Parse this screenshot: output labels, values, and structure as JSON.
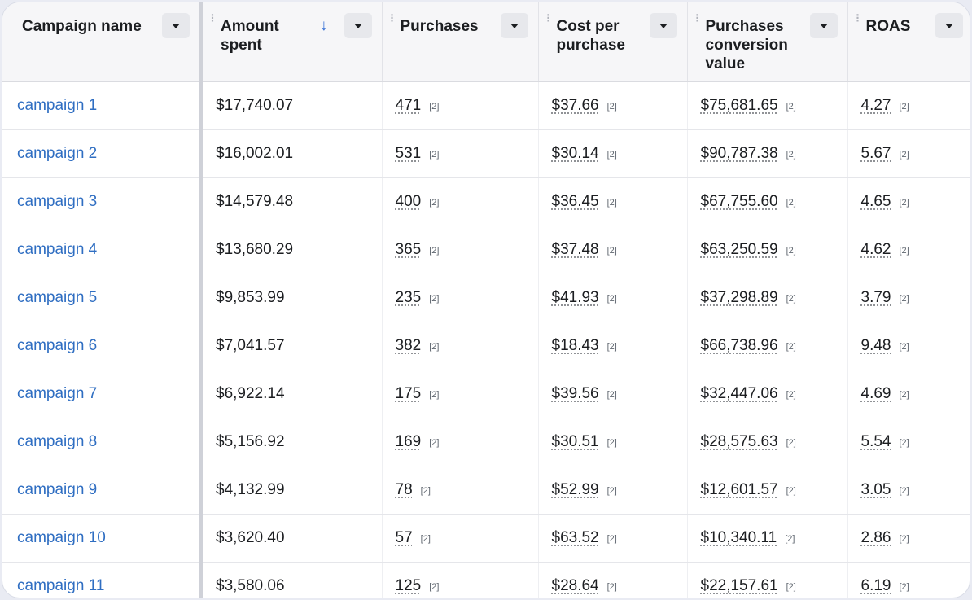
{
  "columns": [
    {
      "label": "Campaign name"
    },
    {
      "label": "Amount spent"
    },
    {
      "label": "Purchases"
    },
    {
      "label": "Cost per purchase"
    },
    {
      "label": "Purchases conversion value"
    },
    {
      "label": "ROAS"
    }
  ],
  "sort_indicator": "↓",
  "footnote": "[2]",
  "rows": [
    {
      "name": "campaign 1",
      "spent": "$17,740.07",
      "purchases": "471",
      "cpp": "$37.66",
      "value": "$75,681.65",
      "roas": "4.27"
    },
    {
      "name": "campaign 2",
      "spent": "$16,002.01",
      "purchases": "531",
      "cpp": "$30.14",
      "value": "$90,787.38",
      "roas": "5.67"
    },
    {
      "name": "campaign 3",
      "spent": "$14,579.48",
      "purchases": "400",
      "cpp": "$36.45",
      "value": "$67,755.60",
      "roas": "4.65"
    },
    {
      "name": "campaign 4",
      "spent": "$13,680.29",
      "purchases": "365",
      "cpp": "$37.48",
      "value": "$63,250.59",
      "roas": "4.62"
    },
    {
      "name": "campaign 5",
      "spent": "$9,853.99",
      "purchases": "235",
      "cpp": "$41.93",
      "value": "$37,298.89",
      "roas": "3.79"
    },
    {
      "name": "campaign 6",
      "spent": "$7,041.57",
      "purchases": "382",
      "cpp": "$18.43",
      "value": "$66,738.96",
      "roas": "9.48"
    },
    {
      "name": "campaign 7",
      "spent": "$6,922.14",
      "purchases": "175",
      "cpp": "$39.56",
      "value": "$32,447.06",
      "roas": "4.69"
    },
    {
      "name": "campaign 8",
      "spent": "$5,156.92",
      "purchases": "169",
      "cpp": "$30.51",
      "value": "$28,575.63",
      "roas": "5.54"
    },
    {
      "name": "campaign 9",
      "spent": "$4,132.99",
      "purchases": "78",
      "cpp": "$52.99",
      "value": "$12,601.57",
      "roas": "3.05"
    },
    {
      "name": "campaign 10",
      "spent": "$3,620.40",
      "purchases": "57",
      "cpp": "$63.52",
      "value": "$10,340.11",
      "roas": "2.86"
    },
    {
      "name": "campaign 11",
      "spent": "$3,580.06",
      "purchases": "125",
      "cpp": "$28.64",
      "value": "$22,157.61",
      "roas": "6.19"
    }
  ]
}
